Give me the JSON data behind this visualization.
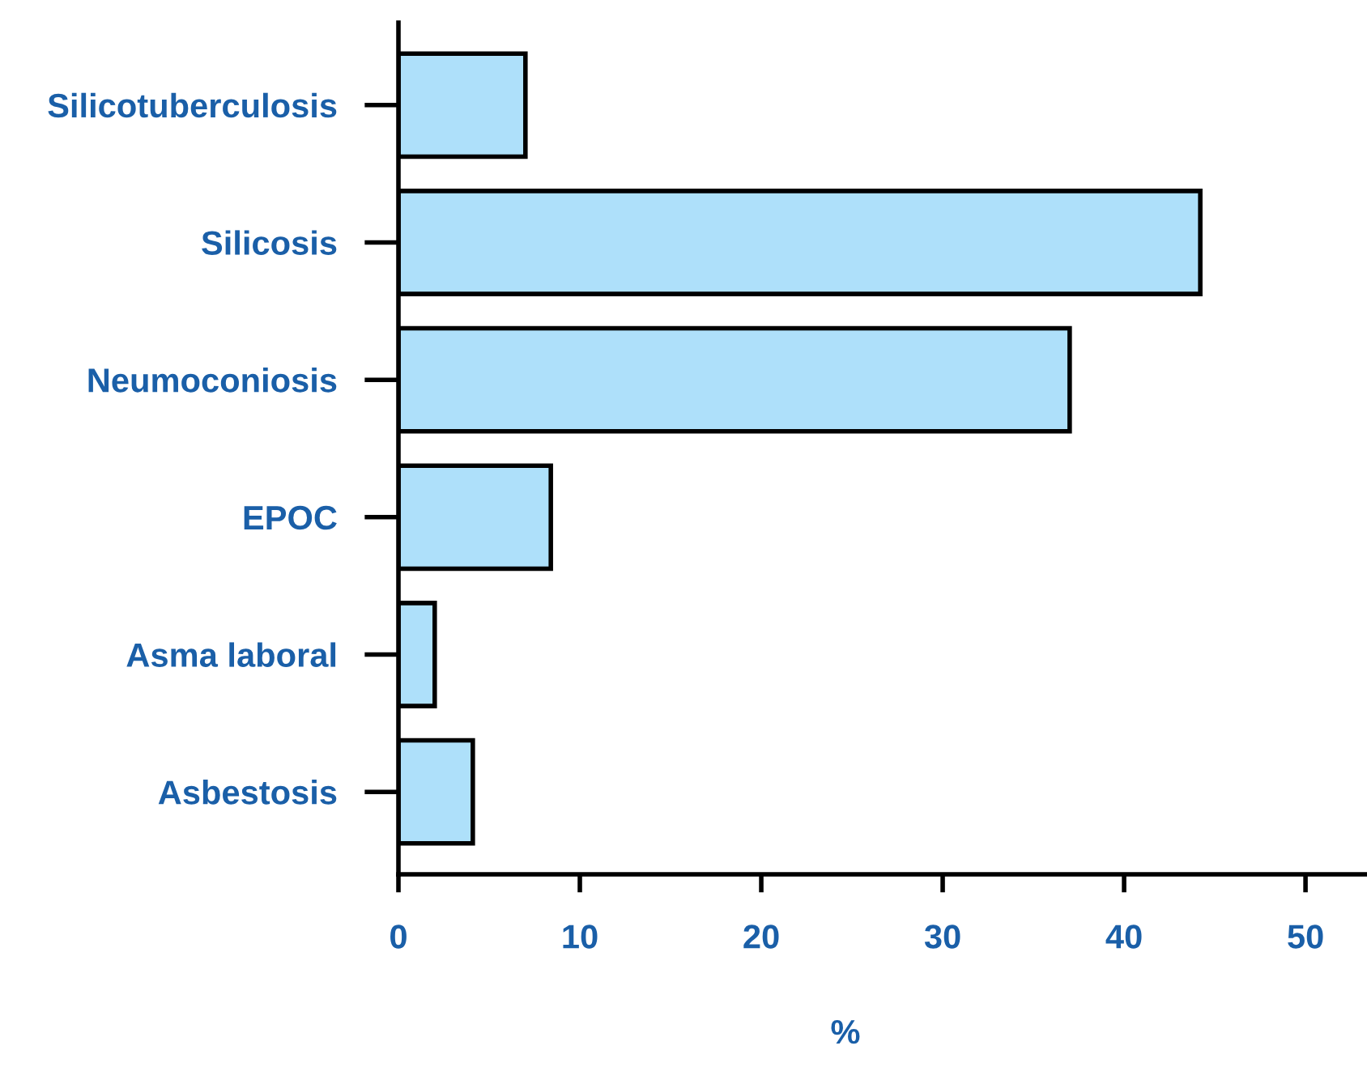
{
  "chart_data": {
    "type": "bar",
    "orientation": "horizontal",
    "xlabel": "%",
    "categories": [
      "Silicotuberculosis",
      "Silicosis",
      "Neumoconiosis",
      "EPOC",
      "Asma laboral",
      "Asbestosis"
    ],
    "values": [
      7,
      44.2,
      37,
      8.4,
      2,
      4.1
    ],
    "color": "#aee0fa",
    "xlim": [
      0,
      53.3
    ],
    "xticks": [
      0,
      10,
      20,
      30,
      40,
      50
    ],
    "grid": false,
    "legend": false
  }
}
